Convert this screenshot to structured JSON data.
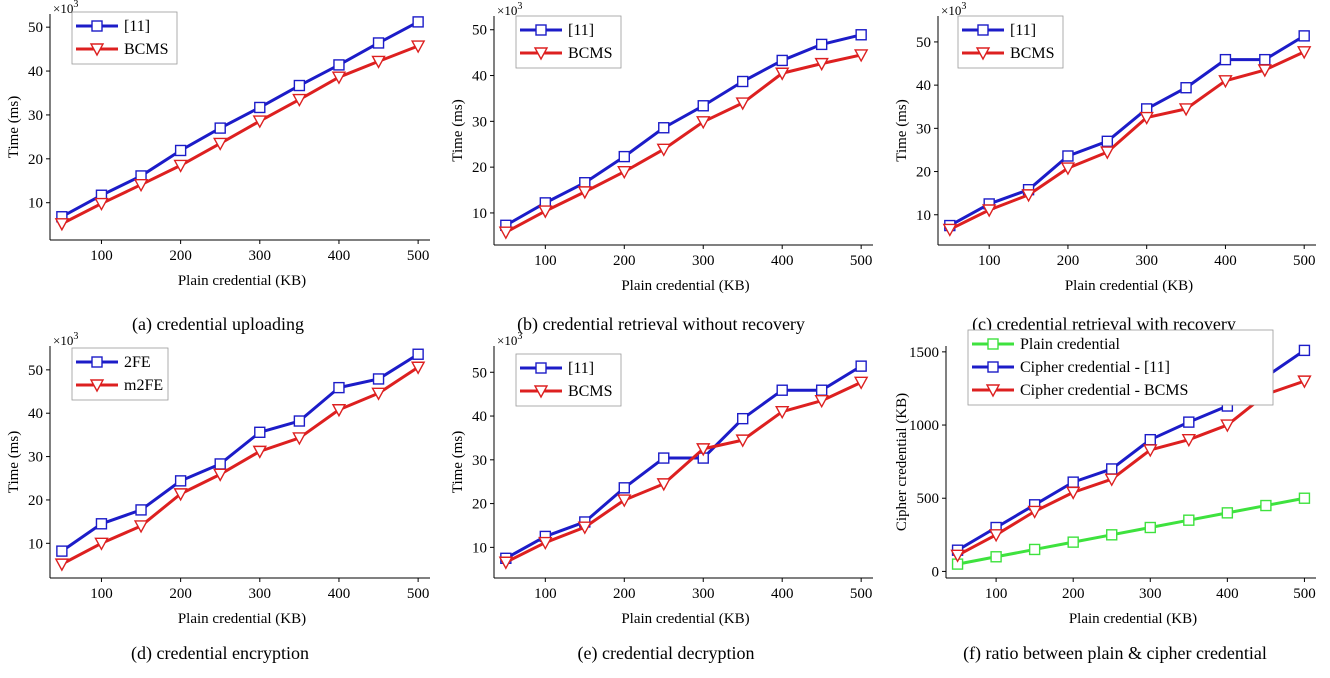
{
  "figure": {
    "panels": [
      {
        "id": "a",
        "caption": "(a) credential uploading"
      },
      {
        "id": "b",
        "caption": "(b) credential retrieval without recovery"
      },
      {
        "id": "c",
        "caption": "(c) credential retrieval with recovery"
      },
      {
        "id": "d",
        "caption": "(d) credential encryption"
      },
      {
        "id": "e",
        "caption": "(e) credential decryption"
      },
      {
        "id": "f",
        "caption": "(f) ratio between plain & cipher credential"
      }
    ]
  },
  "chart_data": [
    {
      "type": "line",
      "caption": "(a) credential uploading",
      "xlabel": "Plain credential (KB)",
      "ylabel": "Time (ms)",
      "multiplier": "×10",
      "multiplier_exp": "3",
      "x": [
        50,
        100,
        150,
        200,
        250,
        300,
        350,
        400,
        450,
        500
      ],
      "xticks": [
        100,
        200,
        300,
        400,
        500
      ],
      "yticks": [
        10,
        20,
        30,
        40,
        50
      ],
      "xlim": [
        35,
        515
      ],
      "ylim": [
        1.5,
        53
      ],
      "legend_position": "top-left",
      "series": [
        {
          "name": "[11]",
          "color": "#1c1cc8",
          "marker": "square",
          "values": [
            6.8,
            11.7,
            16.1,
            21.9,
            27.0,
            31.7,
            36.7,
            41.4,
            46.4,
            51.2
          ]
        },
        {
          "name": "BCMS",
          "color": "#dd2020",
          "marker": "triangle-down",
          "values": [
            5.2,
            9.8,
            14.1,
            18.5,
            23.5,
            28.6,
            33.5,
            38.6,
            42.2,
            45.7
          ]
        }
      ]
    },
    {
      "type": "line",
      "caption": "(b) credential retrieval without recovery",
      "xlabel": "Plain credential (KB)",
      "ylabel": "Time (ms)",
      "multiplier": "×10",
      "multiplier_exp": "3",
      "x": [
        50,
        100,
        150,
        200,
        250,
        300,
        350,
        400,
        450,
        500
      ],
      "xticks": [
        100,
        200,
        300,
        400,
        500
      ],
      "yticks": [
        10,
        20,
        30,
        40,
        50
      ],
      "xlim": [
        35,
        515
      ],
      "ylim": [
        3,
        53
      ],
      "legend_position": "top-left",
      "series": [
        {
          "name": "[11]",
          "color": "#1c1cc8",
          "marker": "square",
          "values": [
            7.3,
            12.2,
            16.6,
            22.3,
            28.6,
            33.4,
            38.7,
            43.3,
            46.8,
            48.9
          ]
        },
        {
          "name": "BCMS",
          "color": "#dd2020",
          "marker": "triangle-down",
          "values": [
            5.8,
            10.4,
            14.6,
            19.0,
            23.9,
            29.9,
            34.0,
            40.5,
            42.6,
            44.5
          ]
        }
      ]
    },
    {
      "type": "line",
      "caption": "(c) credential retrieval with recovery",
      "xlabel": "Plain credential (KB)",
      "ylabel": "Time (ms)",
      "multiplier": "×10",
      "multiplier_exp": "3",
      "x": [
        50,
        100,
        150,
        200,
        250,
        300,
        350,
        400,
        450,
        500
      ],
      "xticks": [
        100,
        200,
        300,
        400,
        500
      ],
      "yticks": [
        10,
        20,
        30,
        40,
        50
      ],
      "xlim": [
        35,
        515
      ],
      "ylim": [
        3,
        56
      ],
      "legend_position": "top-left",
      "series": [
        {
          "name": "[11]",
          "color": "#1c1cc8",
          "marker": "square",
          "values": [
            7.5,
            12.5,
            15.8,
            23.6,
            27.0,
            34.5,
            39.4,
            45.9,
            45.9,
            51.4
          ]
        },
        {
          "name": "BCMS",
          "color": "#dd2020",
          "marker": "triangle-down",
          "values": [
            6.6,
            11.1,
            14.6,
            20.8,
            24.5,
            32.5,
            34.5,
            41.0,
            43.5,
            47.7
          ]
        }
      ]
    },
    {
      "type": "line",
      "caption": "(d) credential encryption",
      "xlabel": "Plain credential (KB)",
      "ylabel": "Time (ms)",
      "multiplier": "×10",
      "multiplier_exp": "3",
      "x": [
        50,
        100,
        150,
        200,
        250,
        300,
        350,
        400,
        450,
        500
      ],
      "xticks": [
        100,
        200,
        300,
        400,
        500
      ],
      "yticks": [
        10,
        20,
        30,
        40,
        50
      ],
      "xlim": [
        35,
        515
      ],
      "ylim": [
        2,
        55.5
      ],
      "legend_position": "top-left",
      "series": [
        {
          "name": "2FE",
          "color": "#1c1cc8",
          "marker": "square",
          "values": [
            8.2,
            14.5,
            17.7,
            24.4,
            28.3,
            35.6,
            38.2,
            45.9,
            47.9,
            53.6
          ]
        },
        {
          "name": "m2FE",
          "color": "#dd2020",
          "marker": "triangle-down",
          "values": [
            5.2,
            10.0,
            14.0,
            21.4,
            25.9,
            31.2,
            34.3,
            40.8,
            44.6,
            50.6
          ]
        }
      ]
    },
    {
      "type": "line",
      "caption": "(e) credential decryption",
      "xlabel": "Plain credential (KB)",
      "ylabel": "Time (ms)",
      "multiplier": "×10",
      "multiplier_exp": "3",
      "x": [
        50,
        100,
        150,
        200,
        250,
        300,
        350,
        400,
        450,
        500
      ],
      "xticks": [
        100,
        200,
        300,
        400,
        500
      ],
      "yticks": [
        10,
        20,
        30,
        40,
        50
      ],
      "xlim": [
        35,
        515
      ],
      "ylim": [
        3,
        56
      ],
      "legend_position": "top-left",
      "series": [
        {
          "name": "[11]",
          "color": "#1c1cc8",
          "marker": "square",
          "values": [
            7.5,
            12.5,
            15.8,
            23.6,
            30.4,
            30.4,
            39.4,
            45.9,
            45.9,
            51.4
          ]
        },
        {
          "name": "BCMS",
          "color": "#dd2020",
          "marker": "triangle-down",
          "values": [
            6.6,
            11.1,
            14.6,
            20.8,
            24.5,
            32.5,
            34.5,
            41.0,
            43.5,
            47.7
          ]
        }
      ]
    },
    {
      "type": "line",
      "caption": "(f) ratio between plain & cipher credential",
      "xlabel": "Plain credential (KB)",
      "ylabel": "Cipher credential (KB)",
      "multiplier": "",
      "multiplier_exp": "",
      "x": [
        50,
        100,
        150,
        200,
        250,
        300,
        350,
        400,
        450,
        500
      ],
      "xticks": [
        100,
        200,
        300,
        400,
        500
      ],
      "yticks": [
        0,
        500,
        1000,
        1500
      ],
      "xlim": [
        35,
        515
      ],
      "ylim": [
        -45,
        1540
      ],
      "legend_position": "top-left",
      "series": [
        {
          "name": "Plain credential",
          "color": "#3ee23e",
          "marker": "square",
          "values": [
            50,
            100,
            150,
            200,
            250,
            300,
            350,
            400,
            450,
            500
          ]
        },
        {
          "name": "Cipher credential - [11]",
          "color": "#1c1cc8",
          "marker": "square",
          "values": [
            145,
            300,
            455,
            610,
            700,
            900,
            1020,
            1130,
            1330,
            1510
          ]
        },
        {
          "name": "Cipher credential - BCMS",
          "color": "#dd2020",
          "marker": "triangle-down",
          "values": [
            110,
            250,
            410,
            540,
            630,
            830,
            900,
            1000,
            1210,
            1300
          ]
        }
      ]
    }
  ]
}
